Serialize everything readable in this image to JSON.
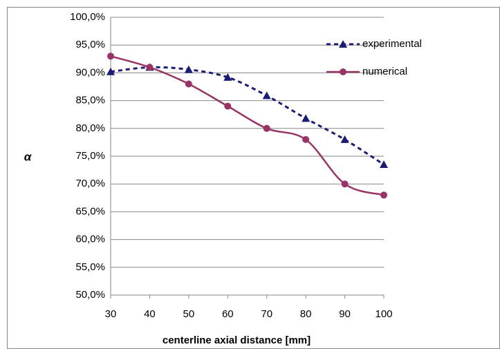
{
  "chart_data": {
    "type": "line",
    "x_label": "centerline axial distance [mm]",
    "y_label": "α",
    "x": [
      30,
      40,
      50,
      60,
      70,
      80,
      90,
      100
    ],
    "series": [
      {
        "name": "experimental",
        "color": "#1b1b78",
        "dashed": true,
        "marker": "triangle",
        "values": [
          90.2,
          91.0,
          90.6,
          89.2,
          85.9,
          81.8,
          78.0,
          73.5
        ]
      },
      {
        "name": "numerical",
        "color": "#993366",
        "dashed": false,
        "marker": "circle",
        "values": [
          93.0,
          91.0,
          88.0,
          84.0,
          80.0,
          78.0,
          70.0,
          68.0
        ]
      }
    ],
    "xlim": [
      30,
      100
    ],
    "xticks": [
      30,
      40,
      50,
      60,
      70,
      80,
      90,
      100
    ],
    "ylim": [
      50,
      100
    ],
    "yticks": [
      {
        "value": 50,
        "label": "50,0%"
      },
      {
        "value": 55,
        "label": "55,0%"
      },
      {
        "value": 60,
        "label": "60,0%"
      },
      {
        "value": 65,
        "label": "65,0%"
      },
      {
        "value": 70,
        "label": "70,0%"
      },
      {
        "value": 75,
        "label": "75,0%"
      },
      {
        "value": 80,
        "label": "80,0%"
      },
      {
        "value": 85,
        "label": "85,0%"
      },
      {
        "value": 90,
        "label": "90,0%"
      },
      {
        "value": 95,
        "label": "95,0%"
      },
      {
        "value": 100,
        "label": "100,0%"
      }
    ],
    "grid": true,
    "smooth": true,
    "legend": "top-right"
  }
}
